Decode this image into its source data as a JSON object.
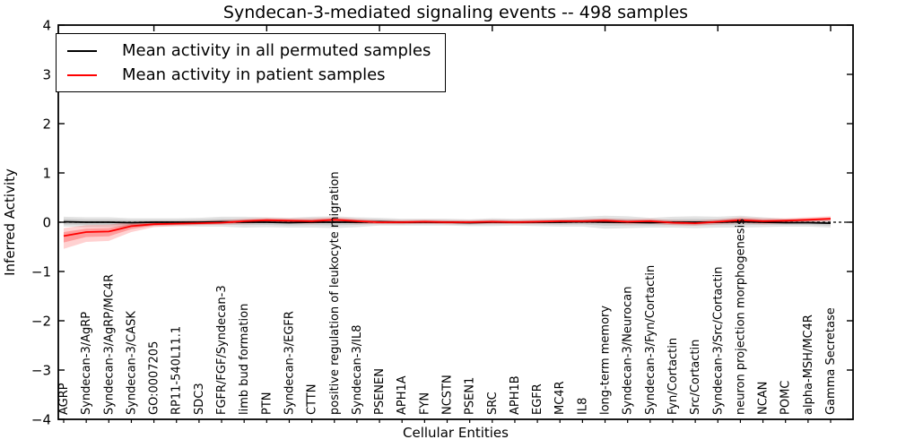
{
  "figure": {
    "kind": "matplotlib-line-chart"
  },
  "chart_data": {
    "type": "line",
    "title": "Syndecan-3-mediated signaling events -- 498 samples",
    "xlabel": "Cellular Entities",
    "ylabel": "Inferred Activity",
    "ylim": [
      -4,
      4
    ],
    "yticks": [
      4,
      3,
      2,
      1,
      0,
      -1,
      -2,
      -3,
      -4
    ],
    "grid": false,
    "legend_position": "upper left",
    "zero_line": {
      "style": "dashed",
      "color": "#000000",
      "y": 0
    },
    "top_tick_indices": [
      4,
      9,
      14,
      19,
      24,
      29,
      34
    ],
    "categories": [
      "AGRP",
      "Syndecan-3/AgRP",
      "Syndecan-3/AgRP/MC4R",
      "Syndecan-3/CASK",
      "GO:0007205",
      "RP11-540L11.1",
      "SDC3",
      "FGFR/FGF/Syndecan-3",
      "limb bud formation",
      "PTN",
      "Syndecan-3/EGFR",
      "CTTN",
      "positive regulation of leukocyte migration",
      "Syndecan-3/IL8",
      "PSENEN",
      "APH1A",
      "FYN",
      "NCSTN",
      "PSEN1",
      "SRC",
      "APH1B",
      "EGFR",
      "MC4R",
      "IL8",
      "long-term memory",
      "Syndecan-3/Neurocan",
      "Syndecan-3/Fyn/Cortactin",
      "Fyn/Cortactin",
      "Src/Cortactin",
      "Syndecan-3/Src/Cortactin",
      "neuron projection morphogenesis",
      "NCAN",
      "POMC",
      "alpha-MSH/MC4R",
      "Gamma Secretase"
    ],
    "series": [
      {
        "name": "Mean activity in all permuted samples",
        "color": "#000000",
        "values": [
          0.01,
          0,
          0,
          -0.01,
          0,
          0,
          0,
          0.01,
          0,
          0,
          -0.01,
          0,
          0,
          0,
          0.01,
          0,
          0,
          0,
          -0.01,
          0,
          0,
          0,
          0,
          0.01,
          0,
          0,
          -0.01,
          0,
          0,
          0,
          0.01,
          0,
          -0.01,
          -0.01,
          -0.02
        ],
        "band_sd": [
          0.1,
          0.1,
          0.1,
          0.09,
          0.08,
          0.08,
          0.09,
          0.1,
          0.11,
          0.1,
          0.1,
          0.11,
          0.12,
          0.1,
          0.08,
          0.07,
          0.07,
          0.07,
          0.07,
          0.08,
          0.07,
          0.08,
          0.09,
          0.1,
          0.13,
          0.12,
          0.1,
          0.11,
          0.12,
          0.11,
          0.12,
          0.1,
          0.08,
          0.08,
          0.09
        ]
      },
      {
        "name": "Mean activity in patient samples",
        "color": "#ff0000",
        "values": [
          -0.28,
          -0.2,
          -0.19,
          -0.08,
          -0.04,
          -0.03,
          -0.02,
          -0.01,
          0.02,
          0.04,
          0.03,
          0.02,
          0.05,
          0.02,
          0,
          0,
          0.01,
          0,
          0,
          0.01,
          0,
          0.01,
          0.02,
          0.02,
          0.03,
          0.01,
          0.02,
          -0.01,
          -0.02,
          0.01,
          0.04,
          0.02,
          0.03,
          0.05,
          0.07
        ],
        "band_hi": [
          -0.12,
          -0.06,
          -0.05,
          0.01,
          0.02,
          0.02,
          0.03,
          0.04,
          0.07,
          0.09,
          0.08,
          0.08,
          0.1,
          0.07,
          0.04,
          0.04,
          0.05,
          0.04,
          0.04,
          0.05,
          0.04,
          0.05,
          0.06,
          0.06,
          0.08,
          0.06,
          0.07,
          0.04,
          0.03,
          0.06,
          0.1,
          0.08,
          0.08,
          0.1,
          0.12
        ],
        "band_lo": [
          -0.54,
          -0.4,
          -0.38,
          -0.2,
          -0.1,
          -0.08,
          -0.06,
          -0.05,
          -0.03,
          -0.01,
          -0.02,
          -0.03,
          0,
          -0.03,
          -0.04,
          -0.04,
          -0.03,
          -0.04,
          -0.04,
          -0.03,
          -0.04,
          -0.03,
          -0.02,
          -0.02,
          -0.02,
          -0.04,
          -0.03,
          -0.06,
          -0.07,
          -0.04,
          -0.02,
          -0.04,
          -0.02,
          0,
          0.02
        ]
      }
    ]
  },
  "colors": {
    "frame": "#000000",
    "permuted_line": "#000000",
    "patient_line": "#ff0000",
    "permuted_band": "rgba(0,0,0,0.11)",
    "patient_band_outer": "rgba(255,0,0,0.18)",
    "patient_band_inner": "rgba(255,0,0,0.25)"
  }
}
